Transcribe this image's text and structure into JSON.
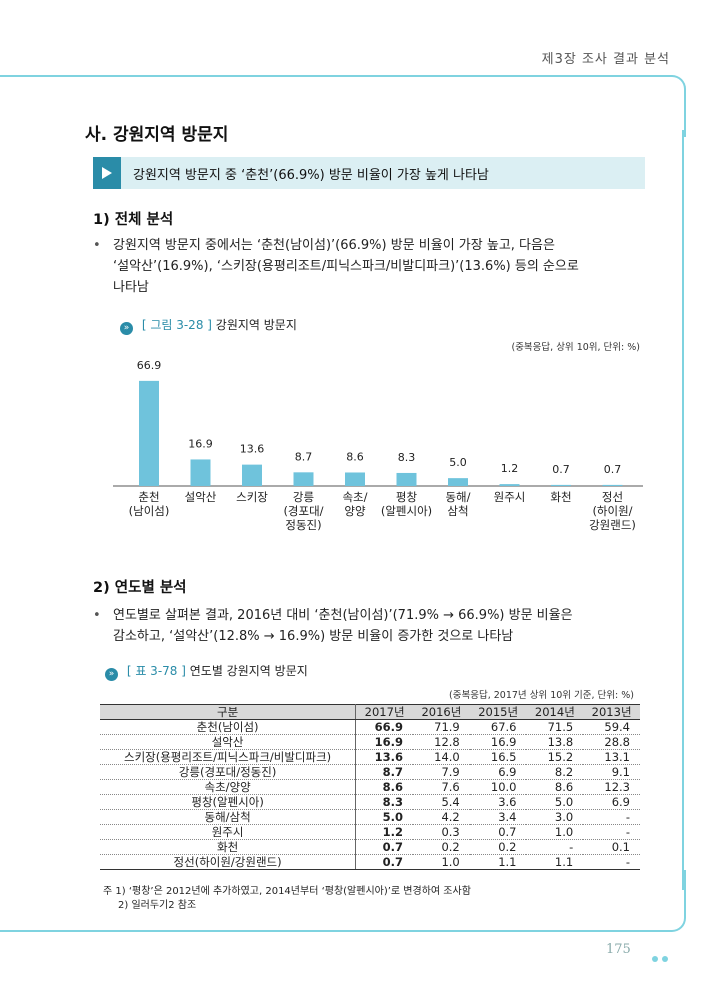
{
  "header": {
    "chapter": "제3장 조사 결과 분석"
  },
  "section": {
    "title": "사. 강원지역 방문지"
  },
  "summary": {
    "text": "강원지역 방문지 중 ‘춘천’(66.9%) 방문 비율이 가장 높게 나타남"
  },
  "part1": {
    "title": "1) 전체 분석",
    "bullet_lines": [
      "강원지역 방문지 중에서는 ‘춘천(남이섬)’(66.9%) 방문 비율이 가장 높고, 다음은",
      "‘설악산’(16.9%), ‘스키장(용평리조트/피닉스파크/비발디파크)’(13.6%) 등의 순으로",
      "나타남"
    ]
  },
  "figure": {
    "caption_label": "[ 그림 3-28 ]",
    "caption_title": "강원지역 방문지",
    "note": "(중복응답, 상위 10위, 단위: %)"
  },
  "chart_data": {
    "type": "bar",
    "categories": [
      "춘천\n(남이섬)",
      "설악산",
      "스키장",
      "강릉\n(경포대/\n정동진)",
      "속초/\n양양",
      "평창\n(알펜시아)",
      "동해/\n삼척",
      "원주시",
      "화천",
      "정선\n(하이원/\n강원랜드)"
    ],
    "values": [
      66.9,
      16.9,
      13.6,
      8.7,
      8.6,
      8.3,
      5.0,
      1.2,
      0.7,
      0.7
    ],
    "value_labels": [
      "66.9",
      "16.9",
      "13.6",
      "8.7",
      "8.6",
      "8.3",
      "5.0",
      "1.2",
      "0.7",
      "0.7"
    ],
    "title": "",
    "ylim": [
      0,
      70
    ],
    "bar_color": "#6fc3dc",
    "grid": false
  },
  "part2": {
    "title": "2) 연도별 분석",
    "bullet_lines": [
      "연도별로 살펴본 결과, 2016년 대비 ‘춘천(남이섬)’(71.9% → 66.9%) 방문 비율은",
      "감소하고, ‘설악산’(12.8% → 16.9%) 방문 비율이 증가한 것으로 나타남"
    ]
  },
  "table": {
    "caption_label": "[ 표 3-78 ]",
    "caption_title": "연도별 강원지역 방문지",
    "note": "(중복응답, 2017년 상위 10위 기준, 단위: %)",
    "headers": [
      "구분",
      "2017년",
      "2016년",
      "2015년",
      "2014년",
      "2013년"
    ],
    "rows": [
      [
        "춘천(남이섬)",
        "66.9",
        "71.9",
        "67.6",
        "71.5",
        "59.4"
      ],
      [
        "설악산",
        "16.9",
        "12.8",
        "16.9",
        "13.8",
        "28.8"
      ],
      [
        "스키장(용평리조트/피닉스파크/비발디파크)",
        "13.6",
        "14.0",
        "16.5",
        "15.2",
        "13.1"
      ],
      [
        "강릉(경포대/정동진)",
        "8.7",
        "7.9",
        "6.9",
        "8.2",
        "9.1"
      ],
      [
        "속초/양양",
        "8.6",
        "7.6",
        "10.0",
        "8.6",
        "12.3"
      ],
      [
        "평창(알펜시아)",
        "8.3",
        "5.4",
        "3.6",
        "5.0",
        "6.9"
      ],
      [
        "동해/삼척",
        "5.0",
        "4.2",
        "3.4",
        "3.0",
        "-"
      ],
      [
        "원주시",
        "1.2",
        "0.3",
        "0.7",
        "1.0",
        "-"
      ],
      [
        "화천",
        "0.7",
        "0.2",
        "0.2",
        "-",
        "0.1"
      ],
      [
        "정선(하이원/강원랜드)",
        "0.7",
        "1.0",
        "1.1",
        "1.1",
        "-"
      ]
    ],
    "footnotes": [
      "주 1) ‘평창’은 2012년에 추가하였고, 2014년부터 ‘평창(알펜시아)’로 변경하여 조사함",
      "2) 일러두기2 참조"
    ]
  },
  "footer": {
    "page_number": "175"
  }
}
